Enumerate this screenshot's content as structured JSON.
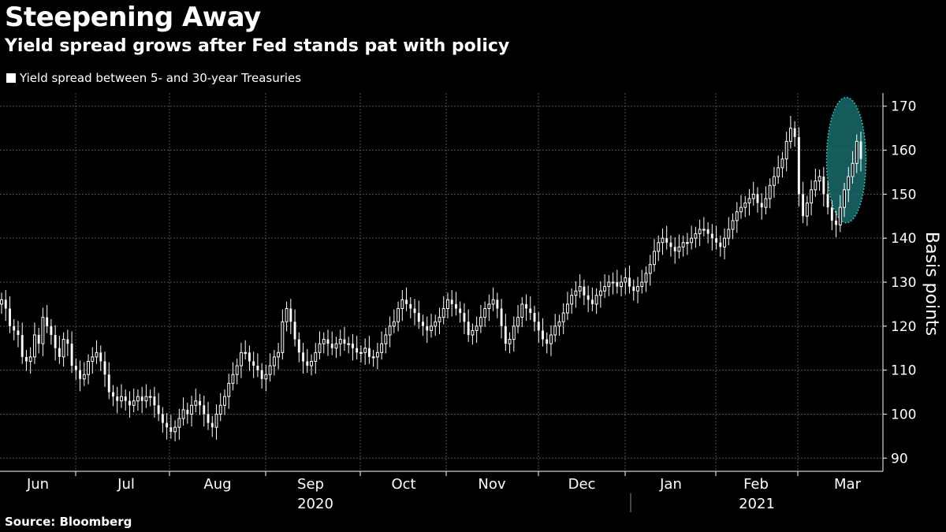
{
  "header": {
    "title": "Steepening Away",
    "subtitle": "Yield spread grows after Fed stands pat with policy"
  },
  "legend": {
    "label": "Yield spread between 5- and 30-year Treasuries",
    "color": "#ffffff"
  },
  "footer": {
    "source": "Source: Bloomberg"
  },
  "colors": {
    "background": "#000000",
    "candle": "#ffffff",
    "grid": "#555555",
    "highlight": "#1a6b6b",
    "highlight_border": "#2fe0d0"
  },
  "chart_data": {
    "type": "candlestick",
    "ylabel": "Basis points",
    "ylim": [
      87,
      173
    ],
    "yticks": [
      90,
      100,
      110,
      120,
      130,
      140,
      150,
      160,
      170
    ],
    "y_axis_side": "right",
    "grid": true,
    "months": [
      "Jun",
      "Jul",
      "Aug",
      "Sep",
      "Oct",
      "Nov",
      "Dec",
      "Jan",
      "Feb",
      "Mar"
    ],
    "years": [
      "2020",
      "2021"
    ],
    "highlight": {
      "center_day": 206,
      "y_range": [
        143.5,
        172
      ]
    },
    "series": [
      {
        "name": "Yield spread between 5- and 30-year Treasuries",
        "x_start": "2020-05-29",
        "x_end": "2021-03-18",
        "close": [
          126,
          124,
          120,
          119,
          118,
          113,
          112,
          113,
          118,
          116,
          122,
          120,
          118,
          115,
          113,
          117,
          116,
          111,
          110,
          108,
          109,
          112,
          113,
          114,
          112,
          109,
          105,
          104,
          103,
          104,
          103,
          102,
          103,
          104,
          103,
          104,
          104,
          102,
          100,
          98,
          97,
          96,
          97,
          99,
          101,
          100,
          102,
          103,
          102,
          100,
          98,
          97,
          100,
          102,
          104,
          107,
          109,
          111,
          114,
          114,
          112,
          111,
          110,
          108,
          109,
          111,
          113,
          114,
          121,
          124,
          121,
          117,
          114,
          112,
          111,
          112,
          114,
          116,
          117,
          116,
          115,
          116,
          117,
          116,
          116,
          115,
          114,
          114,
          115,
          113,
          113,
          114,
          116,
          118,
          120,
          121,
          124,
          126,
          125,
          124,
          123,
          121,
          120,
          119,
          120,
          121,
          122,
          124,
          126,
          125,
          124,
          123,
          121,
          118,
          119,
          120,
          122,
          124,
          125,
          126,
          124,
          120,
          116,
          117,
          120,
          122,
          125,
          124,
          123,
          121,
          119,
          117,
          116,
          118,
          120,
          121,
          123,
          125,
          127,
          128,
          129,
          127,
          126,
          125,
          127,
          128,
          129,
          130,
          130,
          129,
          130,
          131,
          129,
          128,
          129,
          130,
          132,
          134,
          137,
          139,
          140,
          139,
          138,
          137,
          138,
          139,
          139,
          140,
          141,
          142,
          142,
          141,
          140,
          139,
          138,
          140,
          142,
          144,
          146,
          147,
          148,
          149,
          150,
          148,
          147,
          149,
          152,
          154,
          156,
          158,
          162,
          165,
          163,
          150,
          145,
          148,
          151,
          153,
          154,
          150,
          147,
          144,
          143,
          147,
          151,
          154,
          157,
          162,
          158
        ]
      }
    ]
  }
}
